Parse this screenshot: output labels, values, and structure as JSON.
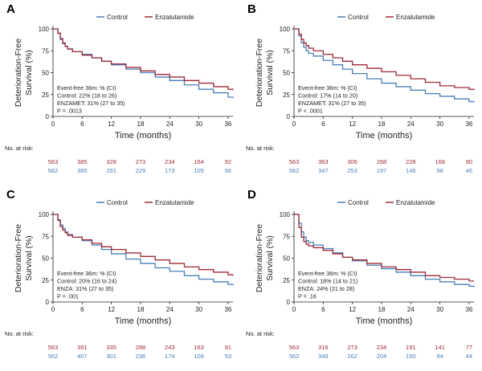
{
  "colors": {
    "control": "#4a7fb8",
    "enza": "#9e2a3a",
    "axis": "#222222"
  },
  "chart_data": [
    {
      "type": "line",
      "panel_label": "A",
      "ylabel": "Deterioration-Free Survival (%)",
      "xlabel": "Time (months)",
      "xlim": [
        0,
        37
      ],
      "ylim": [
        0,
        100
      ],
      "xticks": [
        0,
        6,
        12,
        18,
        24,
        30,
        36
      ],
      "yticks": [
        0,
        25,
        50,
        75,
        100
      ],
      "legend": [
        "Control",
        "Enzalutamide"
      ],
      "legend_position": "top-center",
      "annotations": [
        "Event-free 36m: % (CI)",
        "Control: 22% (18 to 26)",
        "ENZAMET: 31% (27 to 35)",
        "P = .0013"
      ],
      "risk_label": "No. at risk:",
      "risk": {
        "enza": [
          563,
          385,
          328,
          273,
          234,
          164,
          92
        ],
        "control": [
          562,
          385,
          291,
          229,
          173,
          105,
          56
        ]
      },
      "series": [
        {
          "name": "Control",
          "x": [
            0,
            1,
            1.5,
            2,
            2.5,
            3,
            4,
            6,
            8,
            10,
            12,
            15,
            18,
            21,
            24,
            27,
            30,
            33,
            36,
            37
          ],
          "y": [
            100,
            95,
            88,
            83,
            80,
            77,
            74,
            71,
            67,
            63,
            59,
            54,
            50,
            45,
            41,
            36,
            31,
            27,
            22,
            21
          ]
        },
        {
          "name": "Enzalutamide",
          "x": [
            0,
            1,
            1.5,
            2,
            2.5,
            3,
            4,
            6,
            8,
            10,
            12,
            15,
            18,
            21,
            24,
            27,
            30,
            33,
            36,
            37
          ],
          "y": [
            100,
            95,
            89,
            84,
            80,
            77,
            74,
            70,
            67,
            63,
            60,
            56,
            52,
            48,
            45,
            41,
            38,
            34,
            31,
            30
          ]
        }
      ]
    },
    {
      "type": "line",
      "panel_label": "B",
      "ylabel": "Deterioration-Free Survival (%)",
      "xlabel": "Time (months)",
      "xlim": [
        0,
        37
      ],
      "ylim": [
        0,
        100
      ],
      "xticks": [
        0,
        6,
        12,
        18,
        24,
        30,
        36
      ],
      "yticks": [
        0,
        25,
        50,
        75,
        100
      ],
      "legend": [
        "Control",
        "Enzalutamide"
      ],
      "legend_position": "top-center",
      "annotations": [
        "Event-free 36m: % (CI)",
        "Control: 17% (14 to 20)",
        "ENZAMET: 31% (27 to 35)",
        "P < .0001"
      ],
      "risk_label": "No. at risk:",
      "risk": {
        "enza": [
          563,
          363,
          306,
          268,
          228,
          168,
          90
        ],
        "control": [
          562,
          347,
          253,
          197,
          146,
          98,
          46
        ]
      },
      "series": [
        {
          "name": "Control",
          "x": [
            0,
            1,
            1.5,
            2,
            2.5,
            3,
            4,
            6,
            8,
            10,
            12,
            15,
            18,
            21,
            24,
            27,
            30,
            33,
            36,
            37
          ],
          "y": [
            100,
            92,
            84,
            79,
            75,
            72,
            69,
            64,
            59,
            54,
            49,
            43,
            38,
            34,
            30,
            26,
            23,
            20,
            17,
            16
          ]
        },
        {
          "name": "Enzalutamide",
          "x": [
            0,
            1,
            1.5,
            2,
            2.5,
            3,
            4,
            6,
            8,
            10,
            12,
            15,
            18,
            21,
            24,
            27,
            30,
            33,
            36,
            37
          ],
          "y": [
            100,
            94,
            88,
            84,
            81,
            78,
            75,
            71,
            67,
            63,
            59,
            55,
            51,
            47,
            43,
            39,
            35,
            33,
            31,
            30
          ]
        }
      ]
    },
    {
      "type": "line",
      "panel_label": "C",
      "ylabel": "Deterioration-Free Survival (%)",
      "xlabel": "Time (months)",
      "xlim": [
        0,
        37
      ],
      "ylim": [
        0,
        100
      ],
      "xticks": [
        0,
        6,
        12,
        18,
        24,
        30,
        36
      ],
      "yticks": [
        0,
        25,
        50,
        75,
        100
      ],
      "legend": [
        "Control",
        "Enzalutamide"
      ],
      "legend_position": "top-center",
      "annotations": [
        "Event-free 36m: % (CI)",
        "Control: 20% (16 to 24)",
        "ENZA: 31% (27 to 35)",
        "P = .001"
      ],
      "risk_label": "No. at risk:",
      "risk": {
        "enza": [
          563,
          391,
          335,
          288,
          243,
          163,
          91
        ],
        "control": [
          562,
          407,
          301,
          236,
          174,
          108,
          53
        ]
      },
      "series": [
        {
          "name": "Control",
          "x": [
            0,
            1,
            1.5,
            2,
            2.5,
            3,
            4,
            6,
            8,
            10,
            12,
            15,
            18,
            21,
            24,
            27,
            30,
            33,
            36,
            37
          ],
          "y": [
            100,
            94,
            88,
            84,
            80,
            77,
            74,
            70,
            65,
            60,
            55,
            49,
            44,
            39,
            35,
            30,
            26,
            23,
            20,
            19
          ]
        },
        {
          "name": "Enzalutamide",
          "x": [
            0,
            1,
            1.5,
            2,
            2.5,
            3,
            4,
            6,
            8,
            10,
            12,
            15,
            18,
            21,
            24,
            27,
            30,
            33,
            36,
            37
          ],
          "y": [
            100,
            93,
            86,
            82,
            79,
            76,
            74,
            71,
            67,
            63,
            60,
            56,
            52,
            48,
            44,
            40,
            37,
            34,
            31,
            30
          ]
        }
      ]
    },
    {
      "type": "line",
      "panel_label": "D",
      "ylabel": "Deterioration-Free Survival (%)",
      "xlabel": "Time (months)",
      "xlim": [
        0,
        37
      ],
      "ylim": [
        0,
        100
      ],
      "xticks": [
        0,
        6,
        12,
        18,
        24,
        30,
        36
      ],
      "yticks": [
        0,
        25,
        50,
        75,
        100
      ],
      "legend": [
        "Control",
        "Enzalutamide"
      ],
      "legend_position": "top-center",
      "annotations": [
        "Event-free 36m: % (CI)",
        "Control: 18% (14 to 21)",
        "ENZA: 24% (21 to 28)",
        "P = .16"
      ],
      "risk_label": "No. at risk:",
      "risk": {
        "enza": [
          563,
          316,
          273,
          234,
          191,
          141,
          77
        ],
        "control": [
          562,
          349,
          262,
          204,
          150,
          94,
          44
        ]
      },
      "series": [
        {
          "name": "Control",
          "x": [
            0,
            1,
            1.5,
            2,
            2.5,
            3,
            4,
            6,
            8,
            10,
            12,
            15,
            18,
            21,
            24,
            27,
            30,
            33,
            36,
            37
          ],
          "y": [
            100,
            90,
            80,
            74,
            70,
            68,
            65,
            61,
            56,
            51,
            47,
            42,
            38,
            34,
            30,
            26,
            23,
            20,
            18,
            17
          ]
        },
        {
          "name": "Enzalutamide",
          "x": [
            0,
            1,
            1.5,
            2,
            2.5,
            3,
            4,
            6,
            8,
            10,
            12,
            15,
            18,
            21,
            24,
            27,
            30,
            33,
            36,
            37
          ],
          "y": [
            100,
            85,
            74,
            69,
            66,
            64,
            62,
            59,
            55,
            51,
            48,
            44,
            40,
            37,
            34,
            30,
            28,
            26,
            24,
            24
          ]
        }
      ]
    }
  ]
}
